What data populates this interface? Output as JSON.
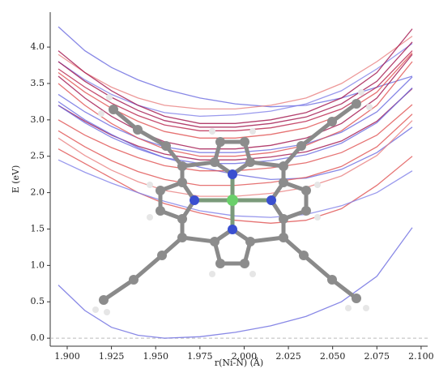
{
  "chart_data": {
    "type": "line",
    "xlabel": "r(Ni-N) (Å)",
    "ylabel": "E (eV)",
    "x": [
      1.895,
      1.91,
      1.925,
      1.94,
      1.955,
      1.975,
      1.995,
      2.015,
      2.035,
      2.055,
      2.075,
      2.095
    ],
    "xlim": [
      1.8904,
      2.1037
    ],
    "ylim": [
      -0.11,
      4.48
    ],
    "xticks": [
      {
        "value": 1.9,
        "label": "1.900"
      },
      {
        "value": 1.925,
        "label": "1.925"
      },
      {
        "value": 1.95,
        "label": "1.950"
      },
      {
        "value": 1.975,
        "label": "1.975"
      },
      {
        "value": 2.0,
        "label": "2.000"
      },
      {
        "value": 2.025,
        "label": "2.025"
      },
      {
        "value": 2.05,
        "label": "2.050"
      },
      {
        "value": 2.075,
        "label": "2.075"
      },
      {
        "value": 2.1,
        "label": "2.100"
      }
    ],
    "yticks": [
      {
        "value": 0,
        "label": "0.0"
      },
      {
        "value": 0.5,
        "label": "0.5"
      },
      {
        "value": 1,
        "label": "1.0"
      },
      {
        "value": 1.5,
        "label": "1.5"
      },
      {
        "value": 2,
        "label": "2.0"
      },
      {
        "value": 2.5,
        "label": "2.5"
      },
      {
        "value": 3,
        "label": "3.0"
      },
      {
        "value": 3.5,
        "label": "3.5"
      },
      {
        "value": 4,
        "label": "4.0"
      }
    ],
    "reference_line": 0,
    "series": [
      {
        "color": "#6a6ae0",
        "values": [
          0.73,
          0.38,
          0.15,
          0.04,
          0.0,
          0.02,
          0.08,
          0.17,
          0.3,
          0.5,
          0.85,
          1.52
        ]
      },
      {
        "color": "#6a6ae0",
        "values": [
          4.28,
          3.95,
          3.72,
          3.55,
          3.42,
          3.3,
          3.22,
          3.18,
          3.2,
          3.3,
          3.45,
          3.6
        ]
      },
      {
        "color": "#e88080",
        "values": [
          3.9,
          3.65,
          3.45,
          3.3,
          3.2,
          3.15,
          3.15,
          3.2,
          3.3,
          3.5,
          3.8,
          4.15
        ]
      },
      {
        "color": "#8080e8",
        "values": [
          3.8,
          3.55,
          3.35,
          3.2,
          3.1,
          3.05,
          3.07,
          3.12,
          3.22,
          3.4,
          3.7,
          4.05
        ]
      },
      {
        "color": "#a0104a",
        "values": [
          3.95,
          3.65,
          3.4,
          3.2,
          3.05,
          2.95,
          2.95,
          3.0,
          3.1,
          3.3,
          3.65,
          4.25
        ]
      },
      {
        "color": "#a0104a",
        "values": [
          3.8,
          3.53,
          3.31,
          3.13,
          2.99,
          2.9,
          2.9,
          2.95,
          3.04,
          3.22,
          3.53,
          4.07
        ]
      },
      {
        "color": "#b8204a",
        "values": [
          3.7,
          3.45,
          3.23,
          3.06,
          2.93,
          2.85,
          2.85,
          2.89,
          2.98,
          3.15,
          3.45,
          3.95
        ]
      },
      {
        "color": "#e05050",
        "values": [
          3.65,
          3.38,
          3.16,
          2.98,
          2.84,
          2.75,
          2.75,
          2.8,
          2.89,
          3.07,
          3.38,
          3.92
        ]
      },
      {
        "color": "#a0104a",
        "values": [
          3.6,
          3.3,
          3.05,
          2.85,
          2.7,
          2.6,
          2.6,
          2.65,
          2.75,
          2.95,
          3.3,
          3.9
        ]
      },
      {
        "color": "#6a6ae0",
        "values": [
          3.35,
          3.11,
          2.91,
          2.75,
          2.63,
          2.55,
          2.55,
          2.59,
          2.67,
          2.83,
          3.11,
          3.59
        ]
      },
      {
        "color": "#e05050",
        "values": [
          3.5,
          3.2,
          2.95,
          2.75,
          2.6,
          2.5,
          2.5,
          2.55,
          2.65,
          2.85,
          3.2,
          3.8
        ]
      },
      {
        "color": "#a0104a",
        "values": [
          3.2,
          2.98,
          2.79,
          2.64,
          2.53,
          2.45,
          2.45,
          2.49,
          2.56,
          2.71,
          2.98,
          3.43
        ]
      },
      {
        "color": "#6a6ae0",
        "values": [
          3.2,
          2.96,
          2.76,
          2.6,
          2.48,
          2.4,
          2.4,
          2.44,
          2.52,
          2.68,
          2.96,
          3.44
        ]
      },
      {
        "color": "#6a6ae0",
        "values": [
          3.25,
          3.0,
          2.8,
          2.62,
          2.48,
          2.35,
          2.25,
          2.18,
          2.2,
          2.32,
          2.55,
          2.9
        ]
      },
      {
        "color": "#e05050",
        "values": [
          3.0,
          2.79,
          2.62,
          2.48,
          2.37,
          2.3,
          2.3,
          2.34,
          2.41,
          2.55,
          2.79,
          3.21
        ]
      },
      {
        "color": "#e05050",
        "values": [
          2.85,
          2.63,
          2.44,
          2.29,
          2.18,
          2.1,
          2.1,
          2.14,
          2.21,
          2.36,
          2.63,
          3.08
        ]
      },
      {
        "color": "#e88080",
        "values": [
          2.75,
          2.51,
          2.31,
          2.15,
          2.03,
          1.95,
          1.95,
          1.99,
          2.07,
          2.23,
          2.51,
          2.99
        ]
      },
      {
        "color": "#e05050",
        "values": [
          2.6,
          2.4,
          2.2,
          2.0,
          1.85,
          1.72,
          1.62,
          1.58,
          1.62,
          1.78,
          2.1,
          2.5
        ]
      },
      {
        "color": "#8080e8",
        "values": [
          2.45,
          2.28,
          2.13,
          2.0,
          1.88,
          1.75,
          1.68,
          1.66,
          1.7,
          1.82,
          2.0,
          2.3
        ]
      }
    ]
  }
}
